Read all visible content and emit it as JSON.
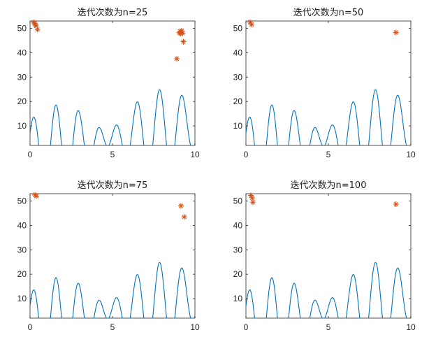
{
  "figure": {
    "background": "#ffffff",
    "curve_color": "#0072bd",
    "marker_color": "#d95319",
    "marker_symbol": "asterisk"
  },
  "chart_data": [
    {
      "type": "line",
      "title": "迭代次数为n=25",
      "xlim": [
        0,
        10
      ],
      "ylim": [
        2,
        53
      ],
      "xticks": [
        0,
        5,
        10
      ],
      "yticks": [
        10,
        20,
        30,
        40,
        50
      ],
      "x_tick_labels": [
        "0",
        "5",
        "10"
      ],
      "y_tick_labels": [
        "10",
        "20",
        "30",
        "40",
        "50"
      ],
      "grid": false,
      "curve": "y = x + 10*sin(5x) + 7*cos(4x) on [0, 10]",
      "points": {
        "x": [
          0.22,
          0.28,
          0.32,
          0.36,
          0.45,
          8.9,
          9.05,
          9.1,
          9.12,
          9.15,
          9.2,
          9.25,
          9.3
        ],
        "y": [
          52.5,
          52.0,
          51.5,
          51.0,
          49.5,
          37.5,
          48.2,
          48.8,
          47.8,
          48.5,
          49.0,
          48.0,
          44.5
        ]
      }
    },
    {
      "type": "line",
      "title": "迭代次数为n=50",
      "xlim": [
        0,
        10
      ],
      "ylim": [
        2,
        53
      ],
      "xticks": [
        0,
        5,
        10
      ],
      "yticks": [
        10,
        20,
        30,
        40,
        50
      ],
      "x_tick_labels": [
        "0",
        "5",
        "10"
      ],
      "y_tick_labels": [
        "10",
        "20",
        "30",
        "40",
        "50"
      ],
      "grid": false,
      "curve": "y = x + 10*sin(5x) + 7*cos(4x) on [0, 10]",
      "points": {
        "x": [
          0.25,
          0.35,
          9.1
        ],
        "y": [
          52.5,
          51.5,
          48.3
        ]
      }
    },
    {
      "type": "line",
      "title": "迭代次数为n=75",
      "xlim": [
        0,
        10
      ],
      "ylim": [
        2,
        53
      ],
      "xticks": [
        0,
        5,
        10
      ],
      "yticks": [
        10,
        20,
        30,
        40,
        50
      ],
      "x_tick_labels": [
        "0",
        "5",
        "10"
      ],
      "y_tick_labels": [
        "10",
        "20",
        "30",
        "40",
        "50"
      ],
      "grid": false,
      "curve": "y = x + 10*sin(5x) + 7*cos(4x) on [0, 10]",
      "points": {
        "x": [
          0.3,
          0.38,
          9.15,
          9.35
        ],
        "y": [
          52.5,
          52.0,
          48.0,
          43.5
        ]
      }
    },
    {
      "type": "line",
      "title": "迭代次数为n=100",
      "xlim": [
        0,
        10
      ],
      "ylim": [
        2,
        53
      ],
      "xticks": [
        0,
        5,
        10
      ],
      "yticks": [
        10,
        20,
        30,
        40,
        50
      ],
      "x_tick_labels": [
        "0",
        "5",
        "10"
      ],
      "y_tick_labels": [
        "10",
        "20",
        "30",
        "40",
        "50"
      ],
      "grid": false,
      "curve": "y = x + 10*sin(5x) + 7*cos(4x) on [0, 10]",
      "points": {
        "x": [
          0.3,
          0.38,
          0.42,
          9.1
        ],
        "y": [
          52.3,
          51.3,
          49.5,
          48.7
        ]
      }
    }
  ]
}
